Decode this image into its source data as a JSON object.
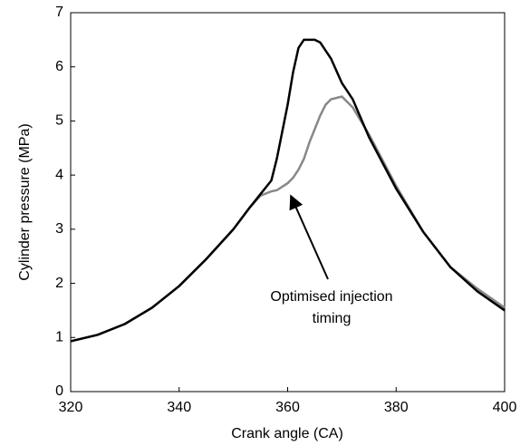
{
  "chart_data": {
    "type": "line",
    "xlabel": "Crank angle (CA)",
    "ylabel": "Cylinder pressure (MPa)",
    "annotation": [
      "Optimised injection",
      "timing"
    ],
    "x": [
      320,
      325,
      330,
      335,
      340,
      345,
      350,
      353,
      355,
      357,
      358,
      360,
      361,
      362,
      363,
      364,
      365,
      366,
      367,
      368,
      370,
      372,
      375,
      380,
      385,
      390,
      395,
      400
    ],
    "series": [
      {
        "color": "#000000",
        "values": [
          0.93,
          1.05,
          1.25,
          1.55,
          1.95,
          2.45,
          3.0,
          3.4,
          3.65,
          3.9,
          4.3,
          5.3,
          5.9,
          6.35,
          6.5,
          6.5,
          6.5,
          6.45,
          6.3,
          6.15,
          5.7,
          5.4,
          4.7,
          3.75,
          2.95,
          2.3,
          1.85,
          1.5
        ]
      },
      {
        "color": "#888888",
        "values": [
          0.93,
          1.05,
          1.25,
          1.55,
          1.95,
          2.45,
          3.0,
          3.4,
          3.62,
          3.7,
          3.72,
          3.85,
          3.95,
          4.1,
          4.3,
          4.6,
          4.85,
          5.1,
          5.3,
          5.4,
          5.45,
          5.25,
          4.75,
          3.8,
          2.95,
          2.3,
          1.9,
          1.55
        ]
      }
    ],
    "xlim": [
      320,
      400
    ],
    "xticks": [
      320,
      340,
      360,
      380,
      400
    ],
    "ylim": [
      0,
      7
    ],
    "yticks": [
      0,
      1,
      2,
      3,
      4,
      5,
      6,
      7
    ],
    "grid": false
  }
}
